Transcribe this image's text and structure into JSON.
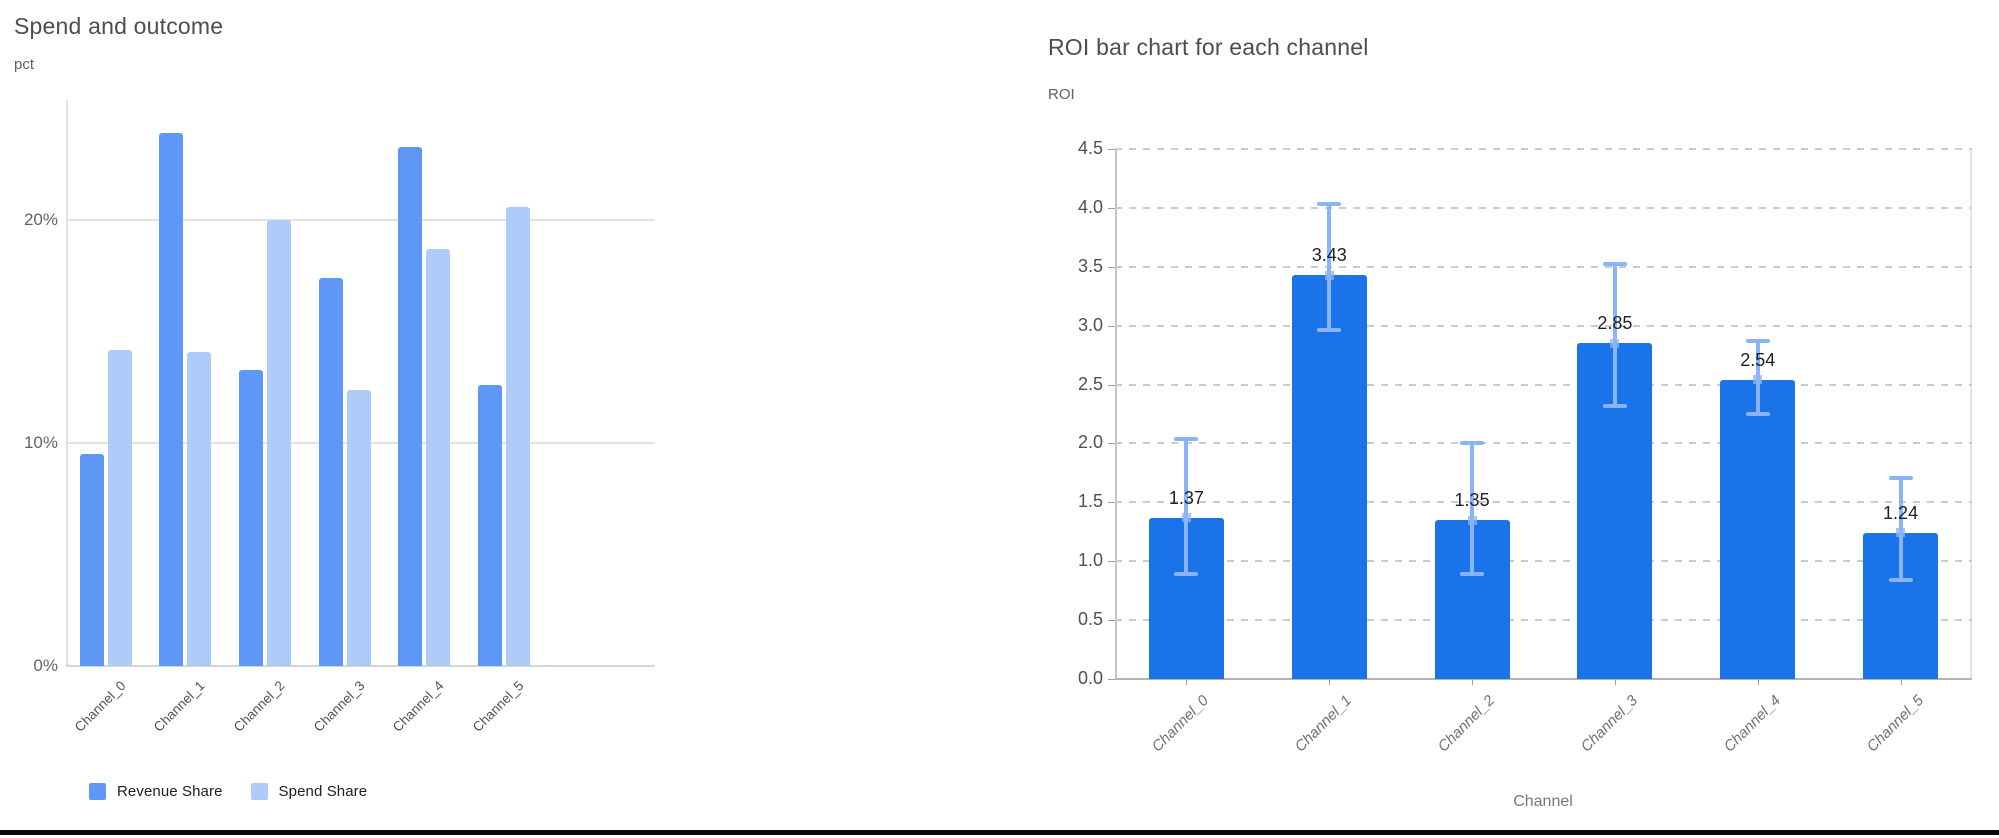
{
  "page": {
    "bottom_rule_color": "#0a0a0a",
    "background": "#ffffff"
  },
  "chart_data": [
    {
      "type": "bar",
      "title": "Spend and outcome",
      "ylabel": "pct",
      "xlabel": "",
      "categories": [
        "Channel_0",
        "Channel_1",
        "Channel_2",
        "Channel_3",
        "Channel_4",
        "Channel_5"
      ],
      "series": [
        {
          "name": "Revenue Share",
          "color": "#5e97f6",
          "values": [
            9.5,
            23.9,
            13.3,
            17.4,
            23.3,
            12.6
          ]
        },
        {
          "name": "Spend Share",
          "color": "#aecbfa",
          "values": [
            14.2,
            14.1,
            20.0,
            12.4,
            18.7,
            20.6
          ]
        }
      ],
      "y_ticks": [
        {
          "v": 0,
          "label": "0%"
        },
        {
          "v": 10,
          "label": "10%"
        },
        {
          "v": 20,
          "label": "20%"
        }
      ],
      "ylim": [
        0,
        25.4
      ],
      "unit": "percent",
      "grid": "solid",
      "legend_position": "bottom-left"
    },
    {
      "type": "bar",
      "title": "ROI bar chart for each channel",
      "ylabel": "ROI",
      "xlabel": "Channel",
      "categories": [
        "Channel_0",
        "Channel_1",
        "Channel_2",
        "Channel_3",
        "Channel_4",
        "Channel_5"
      ],
      "series": [
        {
          "name": "ROI",
          "color": "#1a73e8",
          "values": [
            1.37,
            3.43,
            1.35,
            2.85,
            2.54,
            1.24
          ]
        }
      ],
      "value_labels": [
        "1.37",
        "3.43",
        "1.35",
        "2.85",
        "2.54",
        "1.24"
      ],
      "error_low": [
        0.89,
        2.96,
        0.89,
        2.32,
        2.25,
        0.84
      ],
      "error_high": [
        2.04,
        4.03,
        2.0,
        3.52,
        2.87,
        1.71
      ],
      "error_color": "#8ab4f8",
      "y_ticks": [
        {
          "v": 0.0,
          "label": "0.0"
        },
        {
          "v": 0.5,
          "label": "0.5"
        },
        {
          "v": 1.0,
          "label": "1.0"
        },
        {
          "v": 1.5,
          "label": "1.5"
        },
        {
          "v": 2.0,
          "label": "2.0"
        },
        {
          "v": 2.5,
          "label": "2.5"
        },
        {
          "v": 3.0,
          "label": "3.0"
        },
        {
          "v": 3.5,
          "label": "3.5"
        },
        {
          "v": 4.0,
          "label": "4.0"
        },
        {
          "v": 4.5,
          "label": "4.5"
        }
      ],
      "ylim": [
        0,
        4.5
      ],
      "grid": "dashed",
      "legend_position": "none"
    }
  ]
}
